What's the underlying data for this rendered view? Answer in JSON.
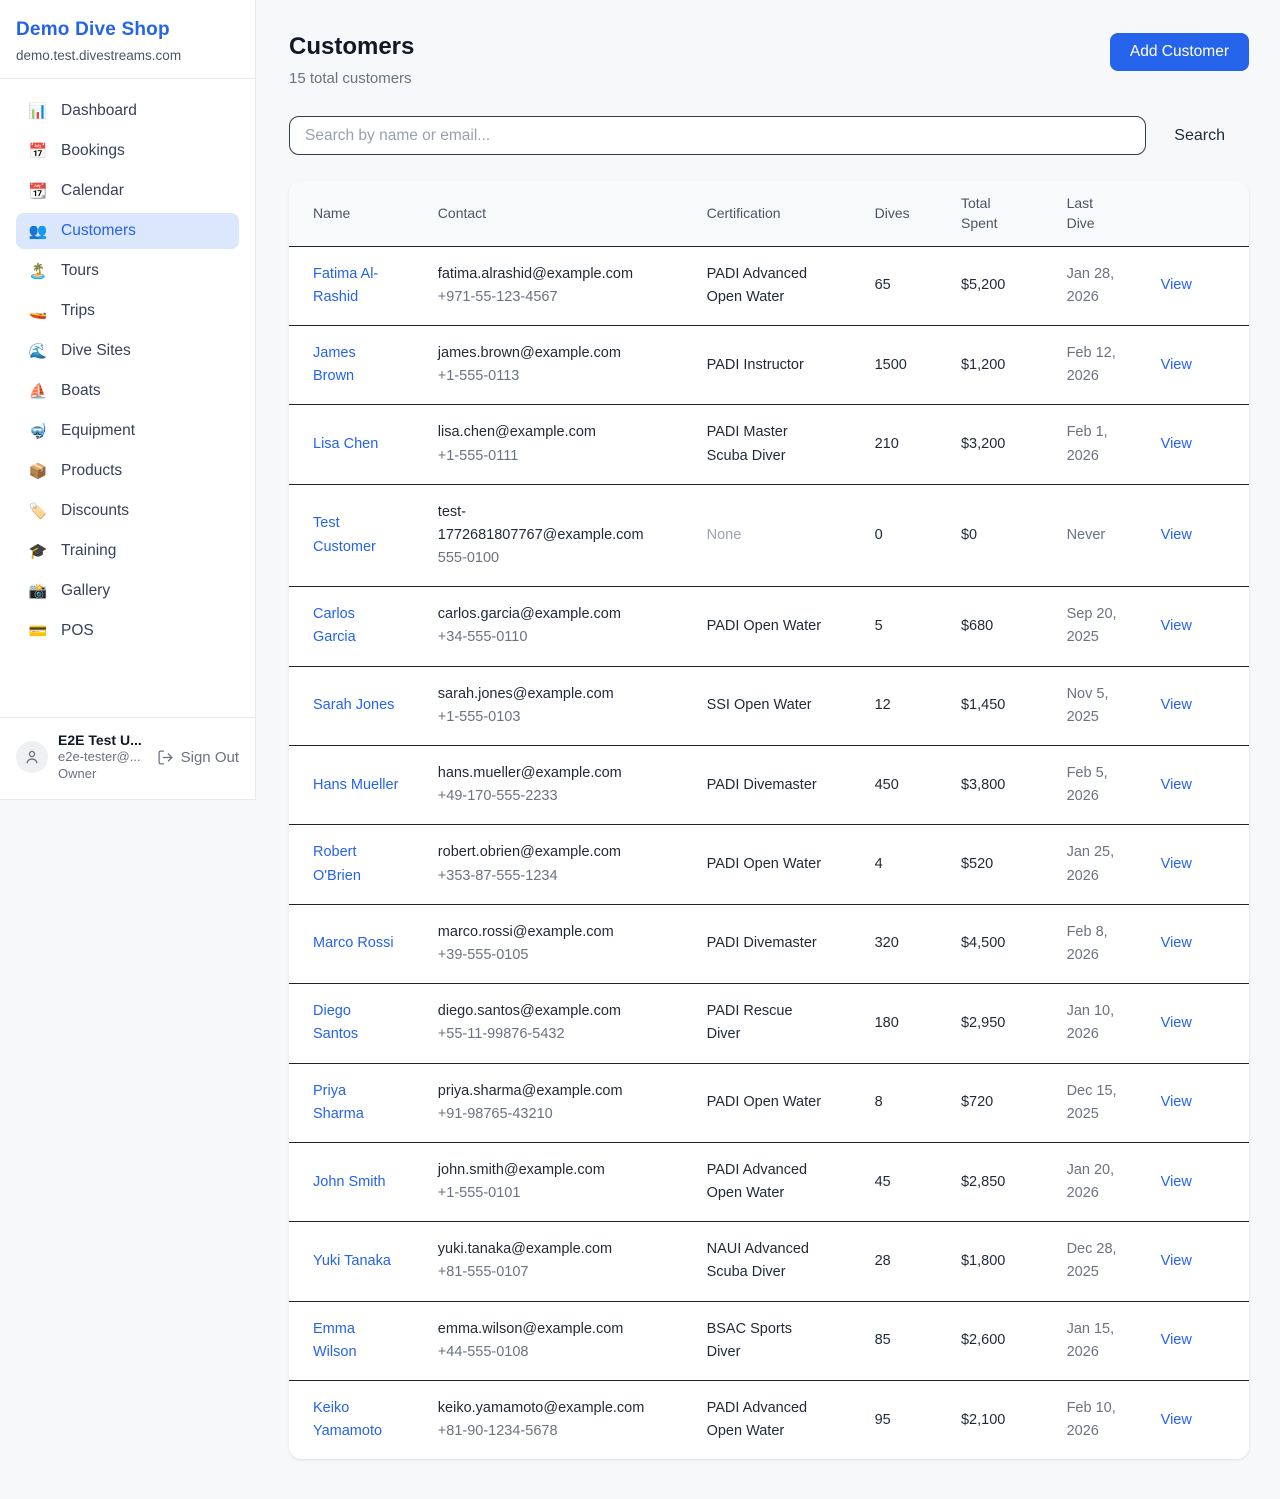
{
  "sidebar": {
    "brand": {
      "title": "Demo Dive Shop",
      "subtitle": "demo.test.divestreams.com"
    },
    "active_item": "Customers",
    "items": [
      {
        "label": "Dashboard",
        "glyph": "📊",
        "icon_name": "bar-chart-icon"
      },
      {
        "label": "Bookings",
        "glyph": "📅",
        "icon_name": "calendar-date-icon"
      },
      {
        "label": "Calendar",
        "glyph": "📆",
        "icon_name": "calendar-icon"
      },
      {
        "label": "Customers",
        "glyph": "👥",
        "icon_name": "people-icon"
      },
      {
        "label": "Tours",
        "glyph": "🏝️",
        "icon_name": "island-icon"
      },
      {
        "label": "Trips",
        "glyph": "🚤",
        "icon_name": "speedboat-icon"
      },
      {
        "label": "Dive Sites",
        "glyph": "🌊",
        "icon_name": "wave-icon"
      },
      {
        "label": "Boats",
        "glyph": "⛵",
        "icon_name": "sailboat-icon"
      },
      {
        "label": "Equipment",
        "glyph": "🤿",
        "icon_name": "diving-mask-icon"
      },
      {
        "label": "Products",
        "glyph": "📦",
        "icon_name": "package-icon"
      },
      {
        "label": "Discounts",
        "glyph": "🏷️",
        "icon_name": "tag-icon"
      },
      {
        "label": "Training",
        "glyph": "🎓",
        "icon_name": "graduation-cap-icon"
      },
      {
        "label": "Gallery",
        "glyph": "📸",
        "icon_name": "camera-icon"
      },
      {
        "label": "POS",
        "glyph": "💳",
        "icon_name": "credit-card-icon"
      }
    ],
    "user": {
      "name": "E2E Test U...",
      "email": "e2e-tester@...",
      "role": "Owner",
      "sign_out_label": "Sign Out"
    }
  },
  "header": {
    "title": "Customers",
    "subtitle": "15 total customers",
    "add_button_label": "Add Customer"
  },
  "search": {
    "placeholder": "Search by name or email...",
    "button_label": "Search"
  },
  "table": {
    "columns": [
      "Name",
      "Contact",
      "Certification",
      "Dives",
      "Total Spent",
      "Last Dive"
    ],
    "rows": [
      {
        "name": "Fatima Al-Rashid",
        "email": "fatima.alrashid@example.com",
        "phone": "+971-55-123-4567",
        "certification": "PADI Advanced Open Water",
        "dives": "65",
        "total_spent": "$5,200",
        "last_dive": "Jan 28, 2026",
        "action": "View"
      },
      {
        "name": "James Brown",
        "email": "james.brown@example.com",
        "phone": "+1-555-0113",
        "certification": "PADI Instructor",
        "dives": "1500",
        "total_spent": "$1,200",
        "last_dive": "Feb 12, 2026",
        "action": "View"
      },
      {
        "name": "Lisa Chen",
        "email": "lisa.chen@example.com",
        "phone": "+1-555-0111",
        "certification": "PADI Master Scuba Diver",
        "dives": "210",
        "total_spent": "$3,200",
        "last_dive": "Feb 1, 2026",
        "action": "View"
      },
      {
        "name": "Test Customer",
        "email": "test-1772681807767@example.com",
        "phone": "555-0100",
        "certification": "None",
        "dives": "0",
        "total_spent": "$0",
        "last_dive": "Never",
        "action": "View"
      },
      {
        "name": "Carlos Garcia",
        "email": "carlos.garcia@example.com",
        "phone": "+34-555-0110",
        "certification": "PADI Open Water",
        "dives": "5",
        "total_spent": "$680",
        "last_dive": "Sep 20, 2025",
        "action": "View"
      },
      {
        "name": "Sarah Jones",
        "email": "sarah.jones@example.com",
        "phone": "+1-555-0103",
        "certification": "SSI Open Water",
        "dives": "12",
        "total_spent": "$1,450",
        "last_dive": "Nov 5, 2025",
        "action": "View"
      },
      {
        "name": "Hans Mueller",
        "email": "hans.mueller@example.com",
        "phone": "+49-170-555-2233",
        "certification": "PADI Divemaster",
        "dives": "450",
        "total_spent": "$3,800",
        "last_dive": "Feb 5, 2026",
        "action": "View"
      },
      {
        "name": "Robert O'Brien",
        "email": "robert.obrien@example.com",
        "phone": "+353-87-555-1234",
        "certification": "PADI Open Water",
        "dives": "4",
        "total_spent": "$520",
        "last_dive": "Jan 25, 2026",
        "action": "View"
      },
      {
        "name": "Marco Rossi",
        "email": "marco.rossi@example.com",
        "phone": "+39-555-0105",
        "certification": "PADI Divemaster",
        "dives": "320",
        "total_spent": "$4,500",
        "last_dive": "Feb 8, 2026",
        "action": "View"
      },
      {
        "name": "Diego Santos",
        "email": "diego.santos@example.com",
        "phone": "+55-11-99876-5432",
        "certification": "PADI Rescue Diver",
        "dives": "180",
        "total_spent": "$2,950",
        "last_dive": "Jan 10, 2026",
        "action": "View"
      },
      {
        "name": "Priya Sharma",
        "email": "priya.sharma@example.com",
        "phone": "+91-98765-43210",
        "certification": "PADI Open Water",
        "dives": "8",
        "total_spent": "$720",
        "last_dive": "Dec 15, 2025",
        "action": "View"
      },
      {
        "name": "John Smith",
        "email": "john.smith@example.com",
        "phone": "+1-555-0101",
        "certification": "PADI Advanced Open Water",
        "dives": "45",
        "total_spent": "$2,850",
        "last_dive": "Jan 20, 2026",
        "action": "View"
      },
      {
        "name": "Yuki Tanaka",
        "email": "yuki.tanaka@example.com",
        "phone": "+81-555-0107",
        "certification": "NAUI Advanced Scuba Diver",
        "dives": "28",
        "total_spent": "$1,800",
        "last_dive": "Dec 28, 2025",
        "action": "View"
      },
      {
        "name": "Emma Wilson",
        "email": "emma.wilson@example.com",
        "phone": "+44-555-0108",
        "certification": "BSAC Sports Diver",
        "dives": "85",
        "total_spent": "$2,600",
        "last_dive": "Jan 15, 2026",
        "action": "View"
      },
      {
        "name": "Keiko Yamamoto",
        "email": "keiko.yamamoto@example.com",
        "phone": "+81-90-1234-5678",
        "certification": "PADI Advanced Open Water",
        "dives": "95",
        "total_spent": "$2,100",
        "last_dive": "Feb 10, 2026",
        "action": "View"
      }
    ]
  },
  "colors": {
    "accent": "#2563eb",
    "active_nav_bg": "#dbe7fc",
    "page_bg": "#f7f8f9",
    "table_header_bg": "#f8f9fb",
    "row_border": "#1c2431",
    "muted_text": "#6b7280"
  }
}
